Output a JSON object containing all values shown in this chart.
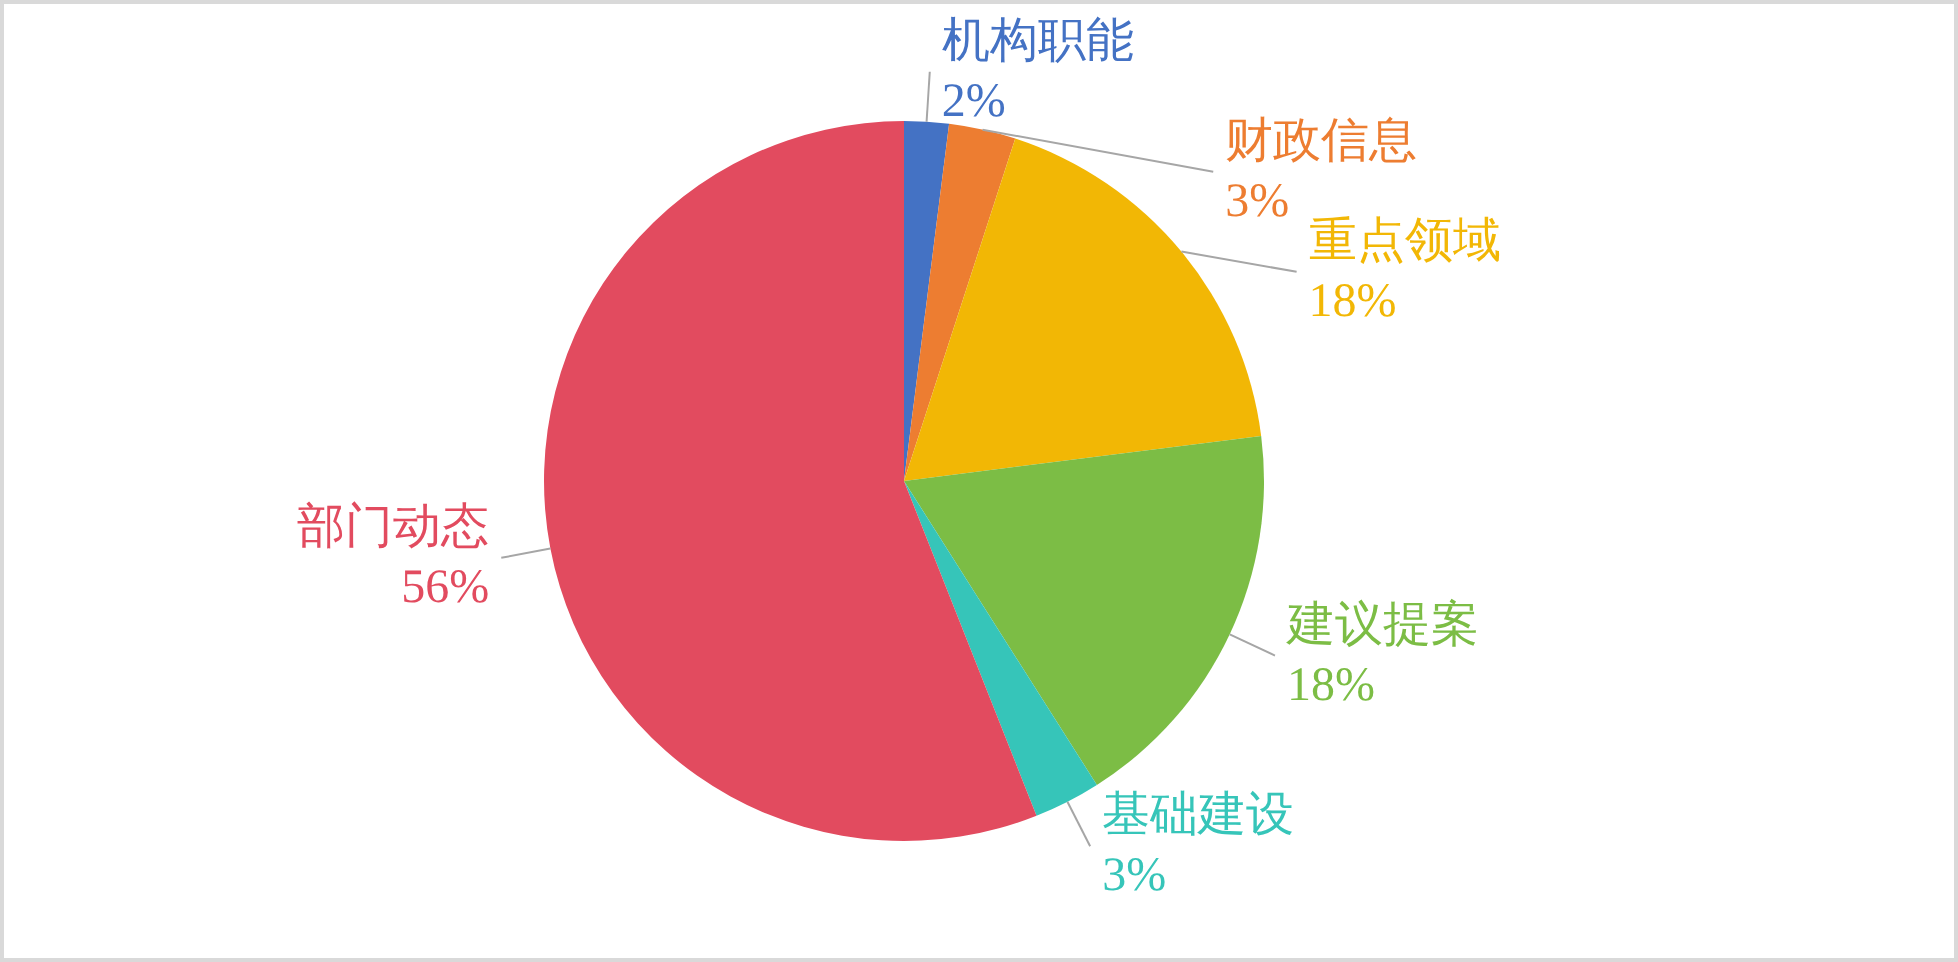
{
  "chart_data": {
    "type": "pie",
    "categories": [
      "机构职能",
      "财政信息",
      "重点领域",
      "建议提案",
      "基础建设",
      "部门动态"
    ],
    "values": [
      2,
      3,
      18,
      18,
      3,
      56
    ],
    "colors": [
      "#4472c4",
      "#ed7d31",
      "#f2b705",
      "#7cbd45",
      "#36c5b9",
      "#e24b5f"
    ],
    "value_labels": [
      "2%",
      "3%",
      "18%",
      "18%",
      "3%",
      "56%"
    ]
  }
}
